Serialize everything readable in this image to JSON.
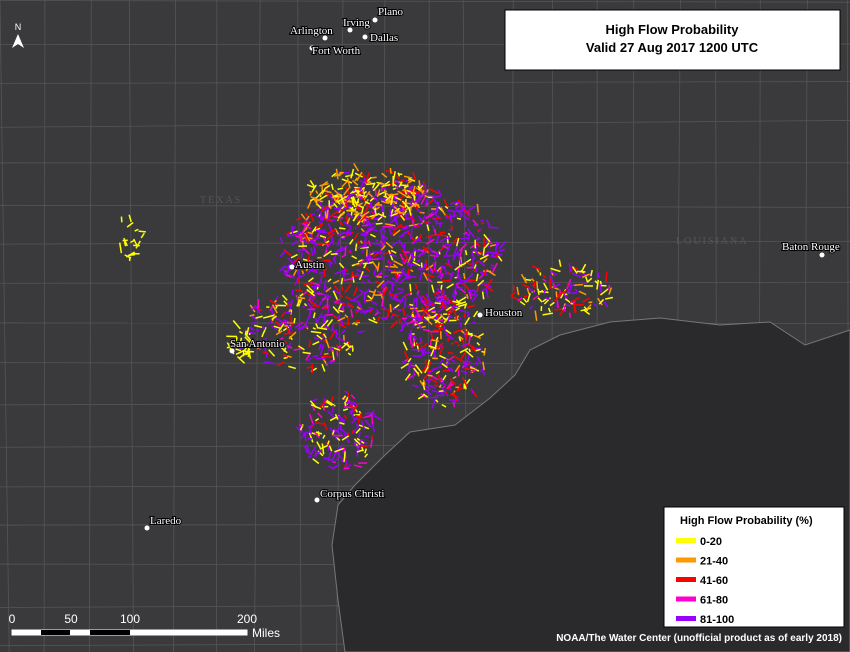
{
  "title": {
    "line1": "High Flow Probability",
    "line2": "Valid 27 Aug 2017 1200 UTC"
  },
  "north": "N",
  "states": [
    "TEXAS",
    "LOUISIANA"
  ],
  "cities": [
    "Plano",
    "Irving",
    "Arlington",
    "Dallas",
    "Fort Worth",
    "Austin",
    "Houston",
    "San Antonio",
    "Baton Rouge",
    "Corpus Christi",
    "Laredo"
  ],
  "legend": {
    "title": "High Flow Probability (%)",
    "items": [
      {
        "label": "0-20",
        "color": "#ffff00"
      },
      {
        "label": "21-40",
        "color": "#ff9900"
      },
      {
        "label": "41-60",
        "color": "#ff0000"
      },
      {
        "label": "61-80",
        "color": "#ff00cc"
      },
      {
        "label": "81-100",
        "color": "#9900ff"
      }
    ]
  },
  "scale": {
    "labels": [
      "0",
      "50",
      "100",
      "200"
    ],
    "unit": "Miles"
  },
  "credit": "NOAA/The Water Center (unofficial product as of early 2018)"
}
